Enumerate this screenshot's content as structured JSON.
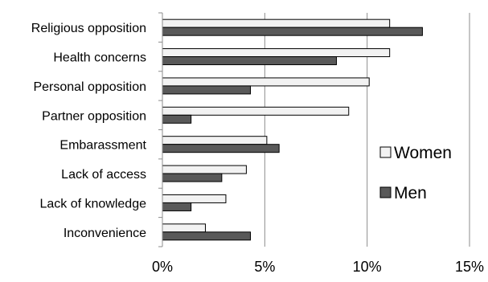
{
  "chart_data": {
    "type": "bar",
    "orientation": "horizontal",
    "categories": [
      "Religious opposition",
      "Health concerns",
      "Personal opposition",
      "Partner opposition",
      "Embarassment",
      "Lack of access",
      "Lack of knowledge",
      "Inconvenience"
    ],
    "series": [
      {
        "name": "Women",
        "color": "#f2f2f2",
        "values": [
          11.1,
          11.1,
          10.1,
          9.1,
          5.1,
          4.1,
          3.1,
          2.1
        ]
      },
      {
        "name": "Men",
        "color": "#595959",
        "values": [
          12.7,
          8.5,
          4.3,
          1.4,
          5.7,
          2.9,
          1.4,
          4.3
        ]
      }
    ],
    "xlim": [
      0,
      15
    ],
    "xticks": [
      0,
      5,
      10,
      15
    ],
    "xtick_labels": [
      "0%",
      "5%",
      "10%",
      "15%"
    ],
    "grid": "vertical",
    "legend_position": "right",
    "title": "",
    "xlabel": "",
    "ylabel": ""
  }
}
